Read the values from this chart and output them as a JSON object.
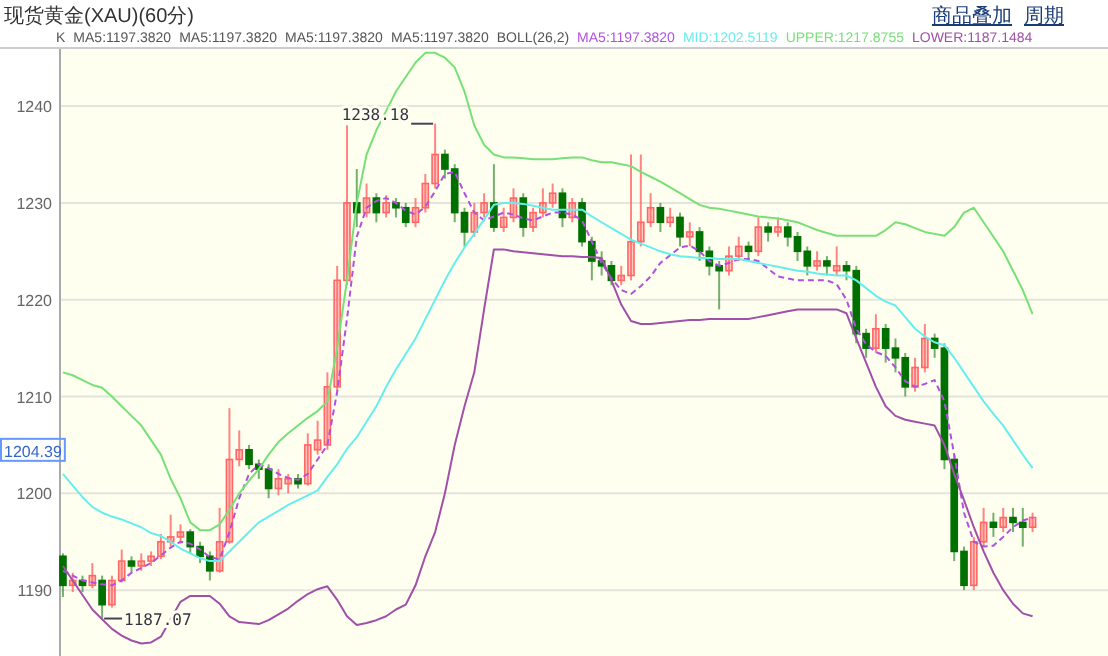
{
  "chart_data": {
    "type": "candlestick",
    "title": "现货黄金(XAU)(60分)",
    "annotations": [
      "商品叠加",
      "周期",
      "K",
      "MA5:1197.3820",
      "MA5:1197.3820",
      "MA5:1197.3820",
      "MA5:1197.3820",
      "BOLL(26,2)",
      {
        "text": "1238.18",
        "y": 1238.18
      },
      "1187.07",
      {
        "text": "1204.39",
        "y": 1204.39
      }
    ],
    "categories": [
      null,
      null,
      null,
      null,
      null,
      null,
      null,
      null,
      null,
      null,
      null,
      null,
      null,
      null,
      null,
      null,
      null,
      null,
      null,
      null,
      null,
      null,
      null,
      null,
      null,
      null,
      null,
      null,
      null,
      null,
      null,
      null,
      null,
      null,
      null,
      null,
      null,
      null,
      null,
      null,
      null,
      null,
      null,
      null,
      null,
      null,
      null,
      null,
      null,
      null,
      null,
      null,
      null,
      null,
      null,
      null,
      null,
      null,
      null,
      null,
      null,
      null,
      null,
      null,
      null,
      null,
      null,
      null,
      null,
      null,
      null,
      null,
      null,
      null,
      null,
      null,
      null,
      null,
      null,
      null,
      null,
      null,
      null,
      null,
      null,
      null,
      null,
      null,
      null,
      null,
      null,
      null,
      null,
      null,
      null,
      null,
      null,
      null,
      null,
      null
    ],
    "ohlc": [
      [
        1193.5,
        1193.8,
        1189.3,
        1190.5
      ],
      [
        1190.5,
        1191.8,
        1189.8,
        1191.0
      ],
      [
        1191.0,
        1191.5,
        1189.8,
        1190.5
      ],
      [
        1190.5,
        1192.8,
        1190.2,
        1191.5
      ],
      [
        1191.0,
        1191.5,
        1187.07,
        1188.5
      ],
      [
        1188.5,
        1191.5,
        1188.2,
        1191.0
      ],
      [
        1191.0,
        1194.2,
        1190.8,
        1193.0
      ],
      [
        1193.0,
        1193.5,
        1191.8,
        1192.5
      ],
      [
        1192.5,
        1193.8,
        1192.0,
        1193.0
      ],
      [
        1193.0,
        1194.0,
        1192.5,
        1193.5
      ],
      [
        1193.5,
        1195.8,
        1193.2,
        1195.0
      ],
      [
        1195.0,
        1197.8,
        1194.5,
        1195.5
      ],
      [
        1195.5,
        1196.8,
        1194.8,
        1196.0
      ],
      [
        1196.0,
        1196.3,
        1193.8,
        1194.5
      ],
      [
        1194.5,
        1195.0,
        1192.8,
        1193.5
      ],
      [
        1193.5,
        1194.0,
        1191.0,
        1192.0
      ],
      [
        1192.0,
        1198.5,
        1191.8,
        1195.0
      ],
      [
        1195.0,
        1208.8,
        1194.8,
        1203.5
      ],
      [
        1203.5,
        1206.5,
        1202.8,
        1204.5
      ],
      [
        1204.5,
        1205.0,
        1202.5,
        1203.0
      ],
      [
        1203.0,
        1203.5,
        1201.5,
        1202.5
      ],
      [
        1202.5,
        1203.0,
        1199.5,
        1200.5
      ],
      [
        1200.5,
        1202.5,
        1199.8,
        1201.5
      ],
      [
        1201.0,
        1202.0,
        1200.0,
        1201.5
      ],
      [
        1201.5,
        1202.0,
        1200.5,
        1201.0
      ],
      [
        1201.0,
        1206.2,
        1200.8,
        1205.0
      ],
      [
        1204.5,
        1207.5,
        1204.0,
        1205.5
      ],
      [
        1205.0,
        1212.5,
        1204.5,
        1211.0
      ],
      [
        1211.0,
        1223.5,
        1210.5,
        1222.0
      ],
      [
        1222.0,
        1238.0,
        1221.5,
        1230.0
      ],
      [
        1230.0,
        1233.5,
        1227.5,
        1229.0
      ],
      [
        1229.0,
        1232.0,
        1228.5,
        1230.5
      ],
      [
        1230.5,
        1231.0,
        1228.0,
        1229.0
      ],
      [
        1229.0,
        1230.8,
        1228.5,
        1230.0
      ],
      [
        1230.0,
        1230.5,
        1228.5,
        1229.5
      ],
      [
        1229.5,
        1230.0,
        1227.5,
        1228.0
      ],
      [
        1228.0,
        1230.5,
        1227.5,
        1229.5
      ],
      [
        1229.5,
        1233.0,
        1229.0,
        1232.0
      ],
      [
        1232.0,
        1238.18,
        1231.5,
        1235.0
      ],
      [
        1235.0,
        1235.5,
        1232.5,
        1233.5
      ],
      [
        1233.5,
        1234.0,
        1228.0,
        1229.0
      ],
      [
        1229.0,
        1229.5,
        1225.5,
        1227.0
      ],
      [
        1227.0,
        1230.0,
        1226.5,
        1229.0
      ],
      [
        1229.0,
        1231.0,
        1228.5,
        1230.0
      ],
      [
        1230.0,
        1234.0,
        1227.0,
        1227.5
      ],
      [
        1227.5,
        1229.5,
        1227.0,
        1228.5
      ],
      [
        1228.5,
        1231.5,
        1228.0,
        1230.5
      ],
      [
        1230.5,
        1231.0,
        1226.5,
        1227.5
      ],
      [
        1227.5,
        1229.5,
        1227.0,
        1229.0
      ],
      [
        1229.0,
        1231.5,
        1228.5,
        1230.0
      ],
      [
        1230.0,
        1232.0,
        1229.5,
        1231.0
      ],
      [
        1231.0,
        1231.5,
        1227.5,
        1228.5
      ],
      [
        1228.5,
        1230.5,
        1228.0,
        1230.0
      ],
      [
        1230.0,
        1230.5,
        1225.5,
        1226.0
      ],
      [
        1226.0,
        1226.5,
        1222.0,
        1224.0
      ],
      [
        1224.0,
        1225.0,
        1222.5,
        1223.5
      ],
      [
        1223.5,
        1224.0,
        1221.5,
        1222.0
      ],
      [
        1222.0,
        1223.5,
        1221.5,
        1222.5
      ],
      [
        1222.5,
        1235.0,
        1222.0,
        1226.0
      ],
      [
        1226.0,
        1235.0,
        1225.5,
        1228.0
      ],
      [
        1228.0,
        1231.0,
        1227.5,
        1229.5
      ],
      [
        1229.5,
        1230.0,
        1227.0,
        1228.0
      ],
      [
        1228.0,
        1229.5,
        1227.5,
        1228.5
      ],
      [
        1228.5,
        1229.0,
        1225.5,
        1226.5
      ],
      [
        1226.5,
        1228.0,
        1225.5,
        1227.0
      ],
      [
        1227.0,
        1227.5,
        1224.0,
        1225.0
      ],
      [
        1225.0,
        1225.5,
        1222.5,
        1223.5
      ],
      [
        1223.5,
        1224.0,
        1219.0,
        1223.0
      ],
      [
        1223.0,
        1225.5,
        1222.5,
        1224.5
      ],
      [
        1224.5,
        1226.5,
        1224.0,
        1225.5
      ],
      [
        1225.5,
        1226.0,
        1224.0,
        1225.0
      ],
      [
        1225.0,
        1228.5,
        1224.5,
        1227.5
      ],
      [
        1227.5,
        1228.0,
        1226.0,
        1227.0
      ],
      [
        1227.0,
        1228.5,
        1226.5,
        1227.5
      ],
      [
        1227.5,
        1228.0,
        1225.5,
        1226.5
      ],
      [
        1226.5,
        1227.0,
        1224.0,
        1225.0
      ],
      [
        1225.0,
        1225.5,
        1222.5,
        1223.5
      ],
      [
        1223.5,
        1225.0,
        1223.0,
        1224.0
      ],
      [
        1224.0,
        1224.5,
        1222.5,
        1223.5
      ],
      [
        1223.0,
        1225.5,
        1222.5,
        1223.5
      ],
      [
        1223.5,
        1224.0,
        1222.0,
        1223.0
      ],
      [
        1223.0,
        1223.5,
        1215.5,
        1216.5
      ],
      [
        1216.5,
        1217.0,
        1214.0,
        1215.0
      ],
      [
        1215.0,
        1218.5,
        1214.5,
        1217.0
      ],
      [
        1217.0,
        1217.5,
        1213.5,
        1215.0
      ],
      [
        1215.0,
        1216.0,
        1212.5,
        1214.0
      ],
      [
        1214.0,
        1214.5,
        1210.0,
        1211.0
      ],
      [
        1211.0,
        1214.0,
        1210.5,
        1213.0
      ],
      [
        1213.0,
        1217.5,
        1212.5,
        1216.0
      ],
      [
        1216.0,
        1216.5,
        1214.0,
        1215.0
      ],
      [
        1215.0,
        1215.5,
        1202.5,
        1203.5
      ],
      [
        1203.5,
        1204.0,
        1193.0,
        1194.0
      ],
      [
        1194.0,
        1194.5,
        1190.0,
        1190.5
      ],
      [
        1190.5,
        1195.5,
        1190.0,
        1195.0
      ],
      [
        1195.0,
        1198.5,
        1194.5,
        1197.0
      ],
      [
        1197.0,
        1198.0,
        1195.5,
        1196.5
      ],
      [
        1196.5,
        1198.5,
        1196.0,
        1197.5
      ],
      [
        1197.5,
        1198.5,
        1196.0,
        1197.0
      ],
      [
        1197.0,
        1198.5,
        1194.5,
        1196.5
      ],
      [
        1196.5,
        1198.0,
        1196.0,
        1197.5
      ]
    ],
    "colors": [
      "#007000",
      "#ff6666",
      "#007000",
      "#ff6666",
      "#007000",
      "#ff6666",
      "#ff6666",
      "#007000",
      "#ff6666",
      "#ff6666",
      "#ff6666",
      "#ff6666",
      "#ff6666",
      "#007000",
      "#007000",
      "#007000",
      "#ff6666",
      "#ff6666",
      "#ff6666",
      "#007000",
      "#007000",
      "#007000",
      "#ff6666",
      "#ff6666",
      "#007000",
      "#ff6666",
      "#ff6666",
      "#ff6666",
      "#ff6666",
      "#ff6666",
      "#007000",
      "#ff6666",
      "#007000",
      "#ff6666",
      "#007000",
      "#007000",
      "#ff6666",
      "#ff6666",
      "#ff6666",
      "#007000",
      "#007000",
      "#007000",
      "#ff6666",
      "#ff6666",
      "#007000",
      "#ff6666",
      "#ff6666",
      "#007000",
      "#ff6666",
      "#ff6666",
      "#ff6666",
      "#007000",
      "#ff6666",
      "#007000",
      "#007000",
      "#007000",
      "#007000",
      "#ff6666",
      "#ff6666",
      "#ff6666",
      "#ff6666",
      "#007000",
      "#ff6666",
      "#007000",
      "#ff6666",
      "#007000",
      "#007000",
      "#007000",
      "#ff6666",
      "#ff6666",
      "#007000",
      "#ff6666",
      "#007000",
      "#ff6666",
      "#007000",
      "#007000",
      "#007000",
      "#ff6666",
      "#007000",
      "#ff6666",
      "#007000",
      "#007000",
      "#007000",
      "#ff6666",
      "#007000",
      "#007000",
      "#007000",
      "#ff6666",
      "#ff6666",
      "#007000",
      "#007000",
      "#007000",
      "#007000",
      "#ff6666",
      "#ff6666",
      "#007000",
      "#ff6666",
      "#007000",
      "#007000",
      "#ff6666"
    ],
    "series": [
      {
        "name": "MA5:1197.3820",
        "type": "line",
        "line_style": "dashed",
        "color": "#b050e0",
        "values": [
          1192,
          1191.5,
          1191,
          1190.8,
          1190.6,
          1190.5,
          1191,
          1191.8,
          1192.3,
          1192.8,
          1193.6,
          1194.4,
          1195,
          1194.8,
          1194.2,
          1193.4,
          1193.2,
          1196,
          1199.5,
          1202,
          1203,
          1202.6,
          1202,
          1201.6,
          1201.4,
          1202,
          1203.5,
          1205,
          1210.5,
          1218,
          1226.5,
          1229.5,
          1230.2,
          1230.5,
          1230,
          1229.2,
          1228.8,
          1229.6,
          1231.2,
          1233,
          1233.2,
          1231,
          1229,
          1228.2,
          1228.6,
          1229,
          1228.8,
          1228.4,
          1228.2,
          1228.6,
          1229,
          1229,
          1228.8,
          1228.2,
          1226,
          1223.8,
          1222.2,
          1221,
          1220.6,
          1221.4,
          1222.4,
          1223.8,
          1224.6,
          1225.4,
          1225.6,
          1225,
          1224,
          1223.5,
          1223.8,
          1224.2,
          1224.2,
          1224,
          1223.2,
          1222.4,
          1222.2,
          1222,
          1222,
          1222,
          1222,
          1221.6,
          1220,
          1217,
          1215.4,
          1214.6,
          1214.2,
          1213,
          1211.6,
          1211,
          1211.3,
          1211.7,
          1209.5,
          1204,
          1198,
          1195,
          1194.5,
          1194.6,
          1195.5,
          1196.5,
          1197.2,
          1197.5
        ]
      },
      {
        "name": "MID:1202.5119",
        "type": "line",
        "color": "#66eeee",
        "values": [
          1202,
          1200.8,
          1199.6,
          1198.6,
          1198,
          1197.6,
          1197.3,
          1196.9,
          1196.5,
          1195.9,
          1195.6,
          1195,
          1194.3,
          1193.8,
          1193.3,
          1193,
          1193,
          1194,
          1195,
          1196,
          1197,
          1197.6,
          1198.2,
          1198.8,
          1199.3,
          1199.8,
          1200.3,
          1201.7,
          1203,
          1204.6,
          1205.8,
          1207.4,
          1209,
          1211,
          1212.8,
          1214.4,
          1216,
          1218,
          1220,
          1222,
          1223.8,
          1225.4,
          1226.8,
          1228.3,
          1229.8,
          1230,
          1230,
          1229.9,
          1229.7,
          1229.5,
          1229.3,
          1229.3,
          1229.3,
          1229.3,
          1228.6,
          1228,
          1227.4,
          1226.8,
          1226.2,
          1225.8,
          1225.4,
          1225,
          1224.7,
          1224.5,
          1224.4,
          1224.3,
          1224.3,
          1224.2,
          1224.2,
          1224.2,
          1224,
          1223.8,
          1223.6,
          1223.4,
          1223.2,
          1223,
          1222.9,
          1222.7,
          1222.6,
          1222.5,
          1222.5,
          1222,
          1221.2,
          1220.4,
          1219.8,
          1219.4,
          1218.2,
          1217,
          1216.2,
          1215.6,
          1215.3,
          1214,
          1212.5,
          1211,
          1209.5,
          1208.2,
          1207,
          1205.5,
          1204,
          1202.6
        ]
      },
      {
        "name": "UPPER:1217.8755",
        "type": "line",
        "color": "#77e077",
        "values": [
          1212.5,
          1212.2,
          1211.7,
          1211.2,
          1210.9,
          1210,
          1209,
          1208,
          1207,
          1205.5,
          1204,
          1201.5,
          1199.5,
          1197,
          1196.2,
          1196.2,
          1196.8,
          1198.3,
          1200,
          1201.3,
          1202.5,
          1204,
          1205.3,
          1206.2,
          1207,
          1207.8,
          1208.5,
          1209.5,
          1215,
          1222,
          1230,
          1235,
          1237.5,
          1239.5,
          1241.5,
          1243,
          1244.5,
          1245.5,
          1245.5,
          1245,
          1244,
          1241.5,
          1238,
          1236,
          1235,
          1234.7,
          1234.7,
          1234.6,
          1234.5,
          1234.5,
          1234.5,
          1234.6,
          1234.7,
          1234.7,
          1234.4,
          1234.2,
          1234.2,
          1234,
          1233.8,
          1233.2,
          1232.7,
          1232.2,
          1231.6,
          1231,
          1230.4,
          1229.8,
          1229.5,
          1229.4,
          1229.2,
          1229,
          1228.8,
          1228.6,
          1228.5,
          1228.4,
          1228.2,
          1228,
          1227.6,
          1227.2,
          1226.9,
          1226.6,
          1226.6,
          1226.6,
          1226.6,
          1226.6,
          1227.2,
          1228,
          1227.8,
          1227.4,
          1227,
          1226.8,
          1226.6,
          1227.5,
          1229,
          1229.5,
          1228,
          1226.5,
          1225,
          1223,
          1221,
          1218.5
        ]
      },
      {
        "name": "LOWER:1187.1484",
        "type": "line",
        "color": "#a050a8",
        "values": [
          1192.5,
          1191,
          1189.5,
          1188,
          1187,
          1186,
          1185.3,
          1184.8,
          1184.5,
          1184.6,
          1185.2,
          1187,
          1188.8,
          1189.4,
          1189.4,
          1189.4,
          1188.6,
          1187.3,
          1186.7,
          1186.6,
          1186.5,
          1186.9,
          1187.5,
          1188.1,
          1188.9,
          1189.6,
          1190.1,
          1190.4,
          1189,
          1187.3,
          1186.4,
          1186.6,
          1186.9,
          1187.3,
          1188,
          1188.5,
          1190.5,
          1193.5,
          1196,
          1200,
          1205,
          1209,
          1212.5,
          1219,
          1225.2,
          1225.2,
          1225,
          1224.9,
          1224.8,
          1224.7,
          1224.6,
          1224.5,
          1224.5,
          1224.4,
          1224.4,
          1224.3,
          1222,
          1219.5,
          1217.8,
          1217.5,
          1217.5,
          1217.6,
          1217.7,
          1217.8,
          1217.9,
          1217.9,
          1218,
          1218,
          1218,
          1218,
          1218,
          1218.2,
          1218.4,
          1218.6,
          1218.8,
          1219,
          1219,
          1219,
          1219,
          1219,
          1218.6,
          1216,
          1213.5,
          1211,
          1209,
          1208,
          1207.6,
          1207.4,
          1207.2,
          1207,
          1205,
          1202,
          1199.3,
          1196.5,
          1194,
          1191.8,
          1190,
          1188.6,
          1187.6,
          1187.3
        ]
      }
    ],
    "ylim": [
      1183.2,
      1246
    ],
    "yticks": [
      1190,
      1200,
      1210,
      1220,
      1230,
      1240
    ],
    "grid": "y",
    "legend": "top"
  }
}
